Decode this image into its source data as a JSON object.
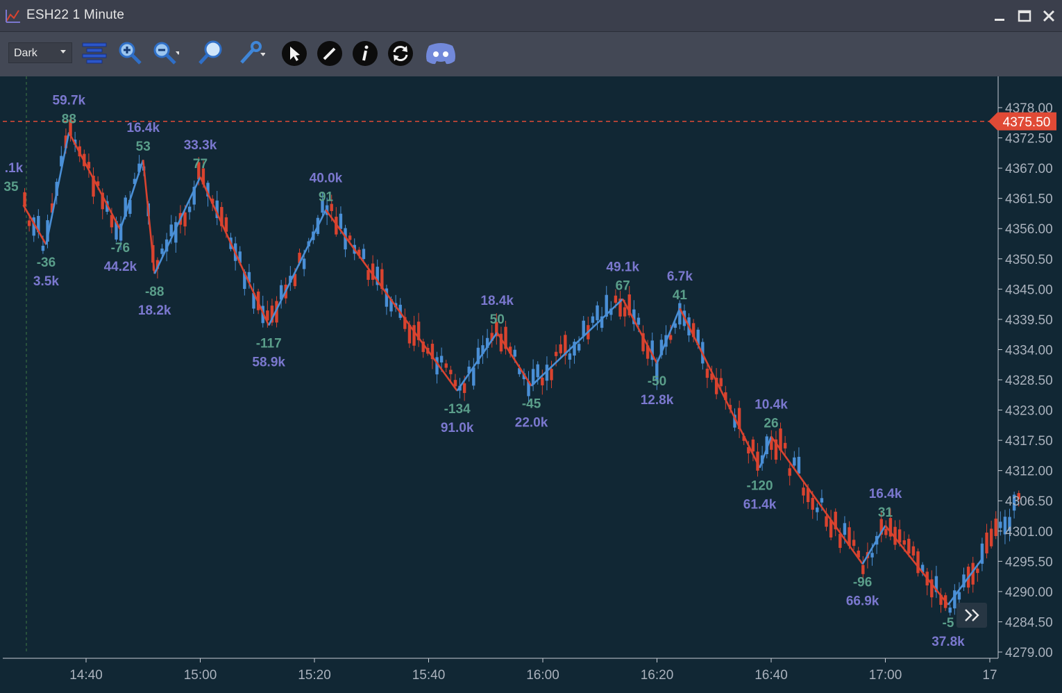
{
  "window": {
    "title": "ESH22 1 Minute",
    "minimize_icon": "minimize-icon",
    "maximize_icon": "maximize-icon",
    "close_icon": "close-icon"
  },
  "toolbar": {
    "theme_selected": "Dark",
    "tools": [
      "horizontal-lines-icon",
      "zoom-in-icon",
      "zoom-out-icon",
      "magnifier-icon",
      "wrench-icon",
      "cursor-icon",
      "pencil-icon",
      "info-icon",
      "refresh-icon",
      "discord-icon"
    ]
  },
  "colors": {
    "background": "#112734",
    "up": "#4a8fd6",
    "down": "#d9432f",
    "volume_label": "#7b78cf",
    "delta_label": "#5a9e8a",
    "price_tag": "#e04a36"
  },
  "chart_data": {
    "type": "candlestick",
    "symbol": "ESH22",
    "interval": "1 Minute",
    "current_price": "4375.50",
    "y_ticks": [
      "4378.00",
      "4372.50",
      "4367.00",
      "4361.50",
      "4356.00",
      "4350.50",
      "4345.00",
      "4339.50",
      "4334.00",
      "4328.50",
      "4323.00",
      "4317.50",
      "4312.00",
      "4306.50",
      "4301.00",
      "4295.50",
      "4290.00",
      "4284.50",
      "4279.00"
    ],
    "x_ticks": [
      "14:40",
      "15:00",
      "15:20",
      "15:40",
      "16:00",
      "16:20",
      "16:40",
      "17:00",
      "17"
    ],
    "ylim": [
      4279.0,
      4378.0
    ],
    "zigzag_pivots": [
      {
        "time": "14:29",
        "price": 4360.3,
        "type": "start"
      },
      {
        "time": "14:33",
        "price": 4353.1,
        "type": "low",
        "delta": "-36",
        "volume": "3.5k"
      },
      {
        "time": "14:37",
        "price": 4373.5,
        "type": "high",
        "volume": "59.7k",
        "delta": "88"
      },
      {
        "time": "14:46",
        "price": 4355.8,
        "type": "low",
        "delta": "-76",
        "volume": "44.2k"
      },
      {
        "time": "14:50",
        "price": 4368.5,
        "type": "high",
        "volume": "16.4k",
        "delta": "53"
      },
      {
        "time": "14:52",
        "price": 4347.8,
        "type": "low",
        "delta": "-88",
        "volume": "18.2k"
      },
      {
        "time": "15:00",
        "price": 4365.4,
        "type": "high",
        "volume": "33.3k",
        "delta": "77"
      },
      {
        "time": "15:12",
        "price": 4338.4,
        "type": "low",
        "delta": "-117",
        "volume": "58.9k"
      },
      {
        "time": "15:22",
        "price": 4359.4,
        "type": "high",
        "volume": "40.0k",
        "delta": "91"
      },
      {
        "time": "15:45",
        "price": 4326.5,
        "type": "low",
        "delta": "-134",
        "volume": "91.0k"
      },
      {
        "time": "15:52",
        "price": 4337.1,
        "type": "high",
        "volume": "18.4k",
        "delta": "50"
      },
      {
        "time": "15:58",
        "price": 4327.4,
        "type": "low",
        "delta": "-45",
        "volume": "22.0k"
      },
      {
        "time": "16:14",
        "price": 4343.2,
        "type": "high",
        "volume": "49.1k",
        "delta": "67"
      },
      {
        "time": "16:20",
        "price": 4331.5,
        "type": "low",
        "delta": "-50",
        "volume": "12.8k"
      },
      {
        "time": "16:24",
        "price": 4341.5,
        "type": "high",
        "volume": "6.7k",
        "delta": "41"
      },
      {
        "time": "16:38",
        "price": 4312.5,
        "type": "low",
        "delta": "-120",
        "volume": "61.4k"
      },
      {
        "time": "16:40",
        "price": 4318.2,
        "type": "high",
        "volume": "10.4k",
        "delta": "26"
      },
      {
        "time": "16:56",
        "price": 4295.0,
        "type": "low",
        "delta": "-96",
        "volume": "66.9k"
      },
      {
        "time": "17:00",
        "price": 4302.0,
        "type": "high",
        "volume": "16.4k",
        "delta": "31"
      },
      {
        "time": "17:11",
        "price": 4287.6,
        "type": "low",
        "delta": "-5",
        "volume": "37.8k"
      },
      {
        "time": "17:17",
        "price": 4296.0,
        "type": "current"
      }
    ],
    "left_partial_labels": {
      "volume": ".1k",
      "delta": "35"
    }
  }
}
